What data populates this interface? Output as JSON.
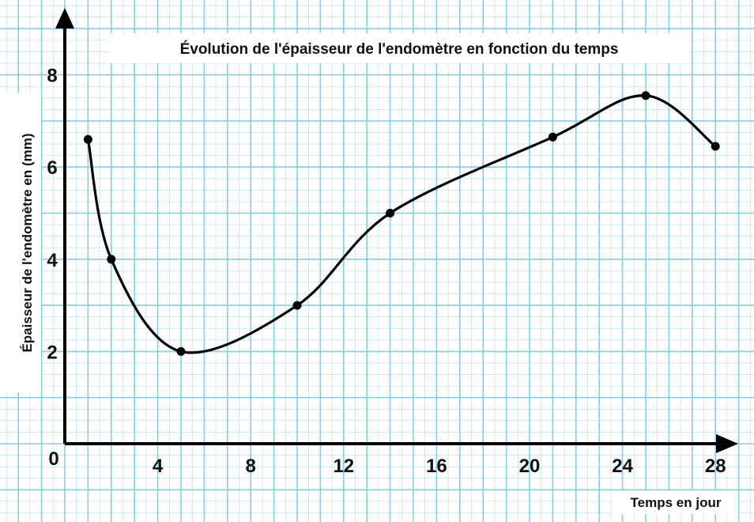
{
  "chart_data": {
    "type": "line",
    "title": "Évolution de l'épaisseur de l'endomètre en fonction du temps",
    "xlabel": "Temps en jour",
    "ylabel": "Épaisseur de l'endomètre en (mm)",
    "origin_label": "0",
    "x_ticks": [
      4,
      8,
      12,
      16,
      20,
      24,
      28
    ],
    "y_ticks": [
      2,
      4,
      6,
      8
    ],
    "xlim": [
      0,
      29
    ],
    "ylim": [
      0,
      9
    ],
    "grid": true,
    "series": [
      {
        "x": [
          1,
          2,
          5,
          10,
          14,
          21,
          25,
          28
        ],
        "y": [
          6.6,
          4.0,
          2.0,
          3.0,
          5.0,
          6.65,
          7.55,
          6.45
        ]
      }
    ],
    "colors": {
      "grid": "#7ec8dc",
      "axis": "#000000",
      "line": "#000000"
    }
  }
}
